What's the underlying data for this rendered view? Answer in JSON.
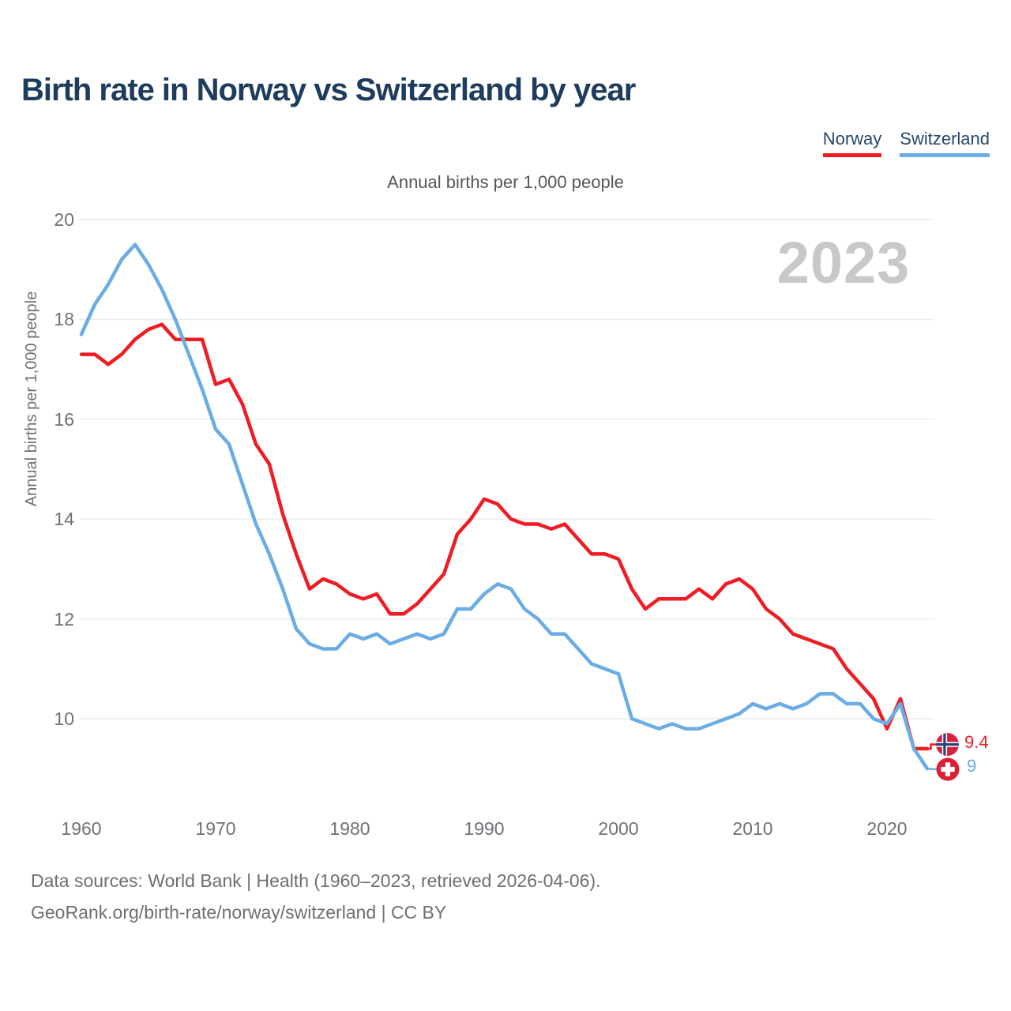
{
  "title": "Birth rate in Norway vs Switzerland by year",
  "subtitle": "Annual births per 1,000 people",
  "watermark_year": "2023",
  "legend": {
    "items": [
      {
        "label": "Norway",
        "color": "#ee1c23"
      },
      {
        "label": "Switzerland",
        "color": "#6cace4"
      }
    ]
  },
  "y_axis": {
    "label": "Annual births per 1,000 people",
    "ticks": [
      "20",
      "18",
      "16",
      "14",
      "12",
      "10"
    ]
  },
  "x_axis": {
    "ticks": [
      "1960",
      "1970",
      "1980",
      "1990",
      "2000",
      "2010",
      "2020"
    ]
  },
  "end_labels": {
    "norway": {
      "value": "9.4",
      "flag": "norway-flag"
    },
    "switzerland": {
      "value": "9",
      "flag": "switzerland-flag"
    }
  },
  "footer": {
    "line1": "Data sources: World Bank | Health (1960–2023, retrieved 2026-04-06).",
    "line2": "GeoRank.org/birth-rate/norway/switzerland | CC BY"
  },
  "chart_data": {
    "type": "line",
    "title": "Birth rate in Norway vs Switzerland by year",
    "subtitle": "Annual births per 1,000 people",
    "xlabel": "",
    "ylabel": "Annual births per 1,000 people",
    "ylim": [
      9,
      20
    ],
    "xlim": [
      1960,
      2023
    ],
    "grid": true,
    "legend_position": "top-right",
    "x": [
      1960,
      1961,
      1962,
      1963,
      1964,
      1965,
      1966,
      1967,
      1968,
      1969,
      1970,
      1971,
      1972,
      1973,
      1974,
      1975,
      1976,
      1977,
      1978,
      1979,
      1980,
      1981,
      1982,
      1983,
      1984,
      1985,
      1986,
      1987,
      1988,
      1989,
      1990,
      1991,
      1992,
      1993,
      1994,
      1995,
      1996,
      1997,
      1998,
      1999,
      2000,
      2001,
      2002,
      2003,
      2004,
      2005,
      2006,
      2007,
      2008,
      2009,
      2010,
      2011,
      2012,
      2013,
      2014,
      2015,
      2016,
      2017,
      2018,
      2019,
      2020,
      2021,
      2022,
      2023
    ],
    "series": [
      {
        "name": "Norway",
        "color": "#ee1c23",
        "values": [
          17.3,
          17.3,
          17.1,
          17.3,
          17.6,
          17.8,
          17.9,
          17.6,
          17.6,
          17.6,
          16.7,
          16.8,
          16.3,
          15.5,
          15.1,
          14.1,
          13.3,
          12.6,
          12.8,
          12.7,
          12.5,
          12.4,
          12.5,
          12.1,
          12.1,
          12.3,
          12.6,
          12.9,
          13.7,
          14.0,
          14.4,
          14.3,
          14.0,
          13.9,
          13.9,
          13.8,
          13.9,
          13.6,
          13.3,
          13.3,
          13.2,
          12.6,
          12.2,
          12.4,
          12.4,
          12.4,
          12.6,
          12.4,
          12.7,
          12.8,
          12.6,
          12.2,
          12.0,
          11.7,
          11.6,
          11.5,
          11.4,
          11.0,
          10.7,
          10.4,
          9.8,
          10.4,
          9.4,
          9.4
        ]
      },
      {
        "name": "Switzerland",
        "color": "#6cace4",
        "values": [
          17.7,
          18.3,
          18.7,
          19.2,
          19.5,
          19.1,
          18.6,
          18.0,
          17.3,
          16.6,
          15.8,
          15.5,
          14.7,
          13.9,
          13.3,
          12.6,
          11.8,
          11.5,
          11.4,
          11.4,
          11.7,
          11.6,
          11.7,
          11.5,
          11.6,
          11.7,
          11.6,
          11.7,
          12.2,
          12.2,
          12.5,
          12.7,
          12.6,
          12.2,
          12.0,
          11.7,
          11.7,
          11.4,
          11.1,
          11.0,
          10.9,
          10.0,
          9.9,
          9.8,
          9.9,
          9.8,
          9.8,
          9.9,
          10.0,
          10.1,
          10.3,
          10.2,
          10.3,
          10.2,
          10.3,
          10.5,
          10.5,
          10.3,
          10.3,
          10.0,
          9.9,
          10.3,
          9.4,
          9.0
        ]
      }
    ]
  }
}
